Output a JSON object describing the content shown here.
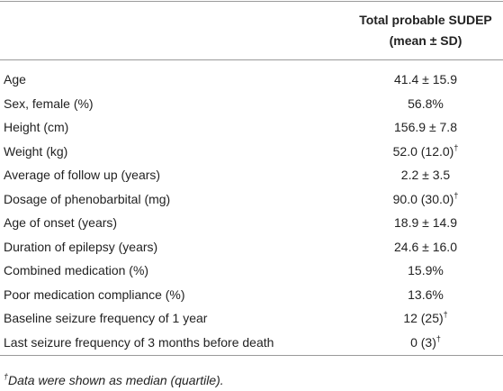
{
  "header": {
    "column": [
      "Total probable SUDEP",
      "(mean ± SD)"
    ]
  },
  "rows": [
    {
      "label": "Age",
      "value": "41.4 ± 15.9"
    },
    {
      "label": "Sex, female (%)",
      "value": "56.8%"
    },
    {
      "label": "Height (cm)",
      "value": "156.9 ± 7.8"
    },
    {
      "label": "Weight (kg)",
      "value": "52.0 (12.0)",
      "mark": "†"
    },
    {
      "label": "Average of follow up (years)",
      "value": "2.2 ± 3.5"
    },
    {
      "label": "Dosage of phenobarbital (mg)",
      "value": "90.0 (30.0)",
      "mark": "†"
    },
    {
      "label": "Age of onset (years)",
      "value": "18.9 ± 14.9"
    },
    {
      "label": "Duration of epilepsy (years)",
      "value": "24.6 ± 16.0"
    },
    {
      "label": "Combined medication (%)",
      "value": "15.9%"
    },
    {
      "label": "Poor medication compliance (%)",
      "value": "13.6%"
    },
    {
      "label": "Baseline seizure frequency of 1 year",
      "value": "12 (25)",
      "mark": "†"
    },
    {
      "label": "Last seizure frequency of 3 months before death",
      "value": "0 (3)",
      "mark": "†"
    }
  ],
  "footnote": {
    "mark": "†",
    "text": "Data were shown as median (quartile)."
  }
}
